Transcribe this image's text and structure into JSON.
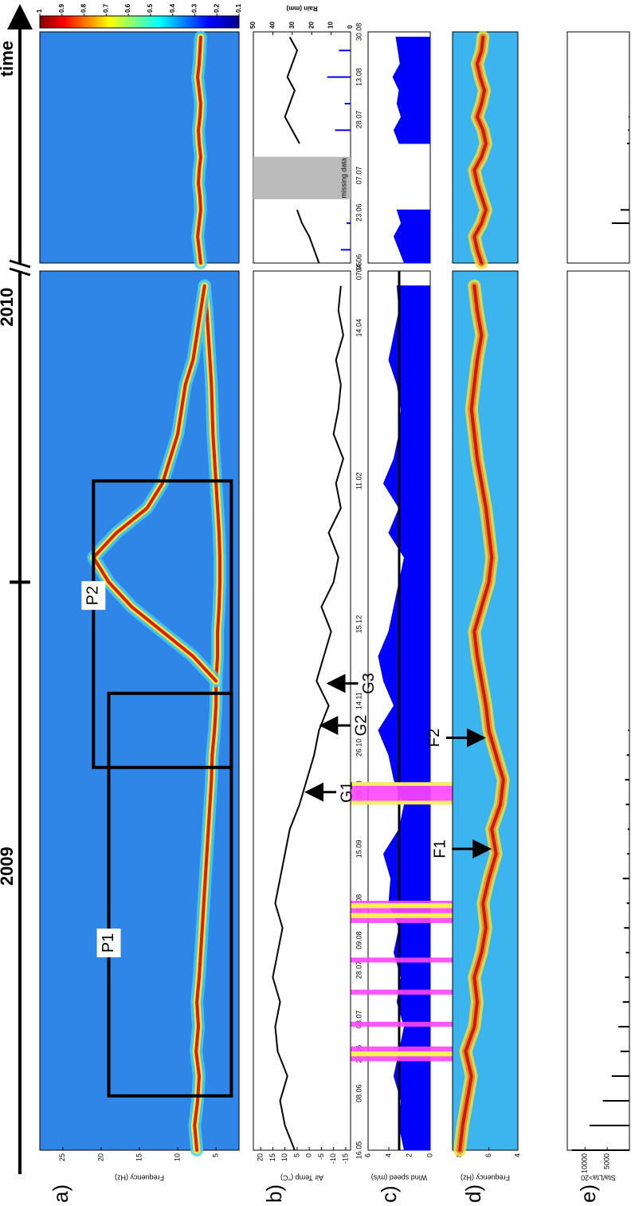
{
  "header": {
    "years": [
      "2009",
      "2010"
    ],
    "year_tick": 230,
    "time_label": "time"
  },
  "colorbar": {
    "ticks": [
      1,
      0.9,
      0.8,
      0.7,
      0.6,
      0.5,
      0.4,
      0.3,
      0.2,
      0.1
    ]
  },
  "time_axes": [
    {
      "xlim": [
        0,
        356
      ],
      "xticks": [
        {
          "value": 0,
          "label": "16.05"
        },
        {
          "value": 23,
          "label": "08.06"
        },
        {
          "value": 39,
          "label": "24.06"
        },
        {
          "value": 53,
          "label": "08.07"
        },
        {
          "value": 73,
          "label": "28.07"
        },
        {
          "value": 85,
          "label": "09.08"
        },
        {
          "value": 100,
          "label": "24.08"
        },
        {
          "value": 122,
          "label": "15.09"
        },
        {
          "value": 146,
          "label": "09.10"
        },
        {
          "value": 163,
          "label": "26.10"
        },
        {
          "value": 182,
          "label": "14.11"
        },
        {
          "value": 213,
          "label": "15.12"
        },
        {
          "value": 271,
          "label": "11.02"
        },
        {
          "value": 333,
          "label": "14.04"
        },
        {
          "value": 356,
          "label": "07.05"
        }
      ],
      "x": [
        0,
        10,
        20,
        30,
        40,
        50,
        60,
        70,
        80,
        90,
        100,
        110,
        120,
        130,
        140,
        150,
        160,
        170,
        180,
        190,
        200,
        210,
        220,
        230,
        240,
        250,
        260,
        270,
        280,
        290,
        300,
        310,
        320,
        330,
        340,
        350
      ]
    },
    {
      "xlim": [
        0,
        87
      ],
      "xticks": [
        {
          "value": 0,
          "label": "04.06"
        },
        {
          "value": 19,
          "label": "23.06"
        },
        {
          "value": 33,
          "label": "07.07"
        },
        {
          "value": 54,
          "label": "28.07"
        },
        {
          "value": 70,
          "label": "13.08"
        },
        {
          "value": 87,
          "label": "30.08"
        }
      ],
      "x": [
        0,
        5,
        10,
        15,
        20,
        25,
        30,
        35,
        40,
        45,
        50,
        55,
        60,
        65,
        70,
        75,
        80,
        85
      ]
    }
  ],
  "highlights": [
    {
      "x": [
        36,
        42
      ],
      "color": "#ff44ff"
    },
    {
      "x": [
        38,
        40
      ],
      "color": "#ffff44"
    },
    {
      "x": [
        50,
        52
      ],
      "color": "#ff44ff"
    },
    {
      "x": [
        63,
        65
      ],
      "color": "#ff44ff"
    },
    {
      "x": [
        76,
        78
      ],
      "color": "#ff44ff"
    },
    {
      "x": [
        92,
        101
      ],
      "color": "#ff44ff"
    },
    {
      "x": [
        94,
        96
      ],
      "color": "#ffff44"
    },
    {
      "x": [
        98,
        100
      ],
      "color": "#ffff44"
    },
    {
      "x": [
        140,
        149
      ],
      "color": "#ff44ff"
    },
    {
      "x": [
        140,
        141.5
      ],
      "color": "#ffff44"
    },
    {
      "x": [
        147.5,
        149
      ],
      "color": "#ffff44"
    }
  ],
  "panels": [
    {
      "label": "a)",
      "type": "spectrogram",
      "ylabel": "Frequency (Hz)",
      "ylim": [
        2,
        28
      ],
      "yticks": [
        5,
        10,
        15,
        20,
        25
      ],
      "background": "#2f86e6",
      "ridge_colors": [
        "#46d2f2",
        "#f2e43a",
        "#d42018"
      ],
      "series": [
        {
          "time": 0,
          "values": [
            7.5,
            7.8,
            7.4,
            7.2,
            7.6,
            7.3,
            7.5,
            7.2,
            7.0,
            6.8,
            6.6,
            6.4,
            6.2,
            6.0,
            5.8,
            5.6,
            5.5,
            5.2,
            5.0,
            5.0,
            4.8,
            4.8,
            4.6,
            4.5,
            4.5,
            4.6,
            4.8,
            5.0,
            5.2,
            5.4,
            5.5,
            5.6,
            5.8,
            6.0,
            6.2,
            6.5
          ]
        },
        {
          "time": 0,
          "values": [
            null,
            null,
            null,
            null,
            null,
            null,
            null,
            null,
            null,
            null,
            null,
            null,
            null,
            null,
            null,
            null,
            null,
            null,
            null,
            5,
            8,
            12,
            16,
            19,
            21,
            18,
            14,
            12,
            11,
            10,
            9.5,
            9,
            8,
            7.5,
            7,
            6.5
          ]
        },
        {
          "time": 1,
          "values": [
            7.0,
            7.2,
            7.4,
            7.2,
            7.0,
            7.1,
            7.3,
            7.2,
            7.0,
            7.2,
            7.3,
            7.1,
            7.0,
            7.2,
            7.4,
            7.2,
            7.1,
            7.0
          ]
        }
      ],
      "boxes": [
        {
          "label": "P1",
          "x": [
            22,
            185
          ],
          "y": [
            3,
            19
          ]
        },
        {
          "label": "P2",
          "x": [
            155,
            271
          ],
          "y": [
            3,
            21
          ]
        }
      ]
    },
    {
      "label": "b)",
      "type": "line",
      "ylabel": "Air Temp (°C)",
      "ylim": [
        -17,
        23
      ],
      "yticks": [
        -15,
        -10,
        -5,
        0,
        5,
        10,
        15,
        20
      ],
      "series": [
        {
          "time": 0,
          "color": "#000000",
          "values": [
            6,
            10,
            12,
            9,
            13,
            14,
            12,
            15,
            13,
            11,
            14,
            12,
            10,
            8,
            4,
            1,
            -2,
            -4,
            -8,
            -3,
            -6,
            -9,
            -5,
            -10,
            -12,
            -8,
            -13,
            -11,
            -14,
            -10,
            -12,
            -13,
            -11,
            -14,
            -12,
            -13
          ]
        },
        {
          "time": 1,
          "color": "#000000",
          "values": [
            -4,
            -2,
            0,
            3,
            5,
            null,
            null,
            null,
            null,
            4,
            7,
            10,
            8,
            6,
            9,
            7,
            5,
            8
          ]
        }
      ],
      "rain": {
        "ylabel": "Rain (mm)",
        "ylim": [
          0,
          50
        ],
        "yticks": [
          0,
          10,
          20,
          30,
          40,
          50
        ],
        "color": "#0000ff",
        "time": 1,
        "values": [
          0,
          5,
          0,
          2,
          0,
          null,
          null,
          null,
          null,
          0,
          8,
          0,
          3,
          0,
          12,
          0,
          6,
          0
        ]
      },
      "missing": {
        "label": "missing data",
        "time": 1,
        "x": [
          24,
          40
        ]
      },
      "annotations": [
        {
          "label": "G1",
          "x": 145,
          "y": 2
        },
        {
          "label": "G2",
          "x": 172,
          "y": -4
        },
        {
          "label": "G3",
          "x": 189,
          "y": -7
        }
      ]
    },
    {
      "label": "c)",
      "type": "area",
      "ylabel": "Wind speed (m/s)",
      "ylabel_color": "#0000ff",
      "ylim": [
        0,
        6
      ],
      "yticks": [
        0,
        2,
        4,
        6
      ],
      "reference_line": 3,
      "series": [
        {
          "time": 0,
          "color": "#0000ff",
          "values": [
            2.5,
            3,
            2.8,
            3.5,
            3,
            2.5,
            3.2,
            2.8,
            3.5,
            3,
            4,
            3.8,
            4.5,
            3,
            2.5,
            3.5,
            4,
            5,
            3.5,
            4.5,
            5,
            4,
            3.5,
            3,
            2.5,
            4,
            3,
            4.5,
            3.5,
            3,
            2.8,
            3.2,
            4,
            3.5,
            3,
            3.2
          ]
        },
        {
          "time": 1,
          "color": "#0000ff",
          "values": [
            2.5,
            3,
            3.5,
            2.8,
            3.2,
            null,
            null,
            null,
            null,
            3,
            3.5,
            2.8,
            3.2,
            3,
            3.6,
            2.9,
            3.1,
            3.3
          ]
        }
      ]
    },
    {
      "label": "d)",
      "type": "spectrogram",
      "ylabel": "Frequency (Hz)",
      "ylim": [
        4,
        8.5
      ],
      "yticks": [
        4,
        6,
        8
      ],
      "background": "#3cb4ee",
      "ridge_colors": [
        "#f2e43a",
        "#f08a20",
        "#c81a14"
      ],
      "series": [
        {
          "time": 0,
          "values": [
            8,
            7.8,
            7.5,
            7.2,
            7.6,
            7,
            6.8,
            7,
            6.5,
            6.2,
            6.4,
            6,
            5.5,
            5.8,
            5.2,
            5,
            5.5,
            6,
            6.2,
            6.5,
            6.8,
            7,
            6.5,
            6,
            5.8,
            6,
            6.2,
            6.5,
            6.8,
            7,
            7.2,
            7,
            6.8,
            6.5,
            6.8,
            7
          ]
        },
        {
          "time": 1,
          "values": [
            6.5,
            6.8,
            7,
            6.5,
            6.2,
            6.5,
            6.8,
            7,
            6.5,
            6.2,
            6.4,
            6.8,
            6.5,
            6.3,
            6.6,
            6.8,
            6.5,
            6.4
          ]
        }
      ],
      "annotations": [
        {
          "label": "F1",
          "x": 122,
          "y": 5.8
        },
        {
          "label": "F2",
          "x": 167,
          "y": 6.2
        }
      ]
    },
    {
      "label": "e)",
      "type": "bar",
      "ylabel": "Sta/Lta>20",
      "ylim": [
        0,
        14000
      ],
      "yticks": [
        5000,
        10000
      ],
      "series": [
        {
          "time": 0,
          "color": "#000000",
          "values": [
            13000,
            9000,
            6000,
            4000,
            2000,
            2500,
            1500,
            1000,
            800,
            1200,
            600,
            1500,
            500,
            400,
            800,
            1000,
            600,
            300,
            0,
            0,
            0,
            0,
            0,
            0,
            0,
            0,
            0,
            0,
            0,
            0,
            0,
            0,
            0,
            0,
            0,
            0
          ]
        },
        {
          "time": 1,
          "color": "#000000",
          "values": [
            0,
            0,
            0,
            4000,
            2000,
            null,
            null,
            null,
            null,
            500,
            300,
            200,
            100,
            0,
            0,
            100,
            0,
            0
          ]
        }
      ]
    }
  ]
}
